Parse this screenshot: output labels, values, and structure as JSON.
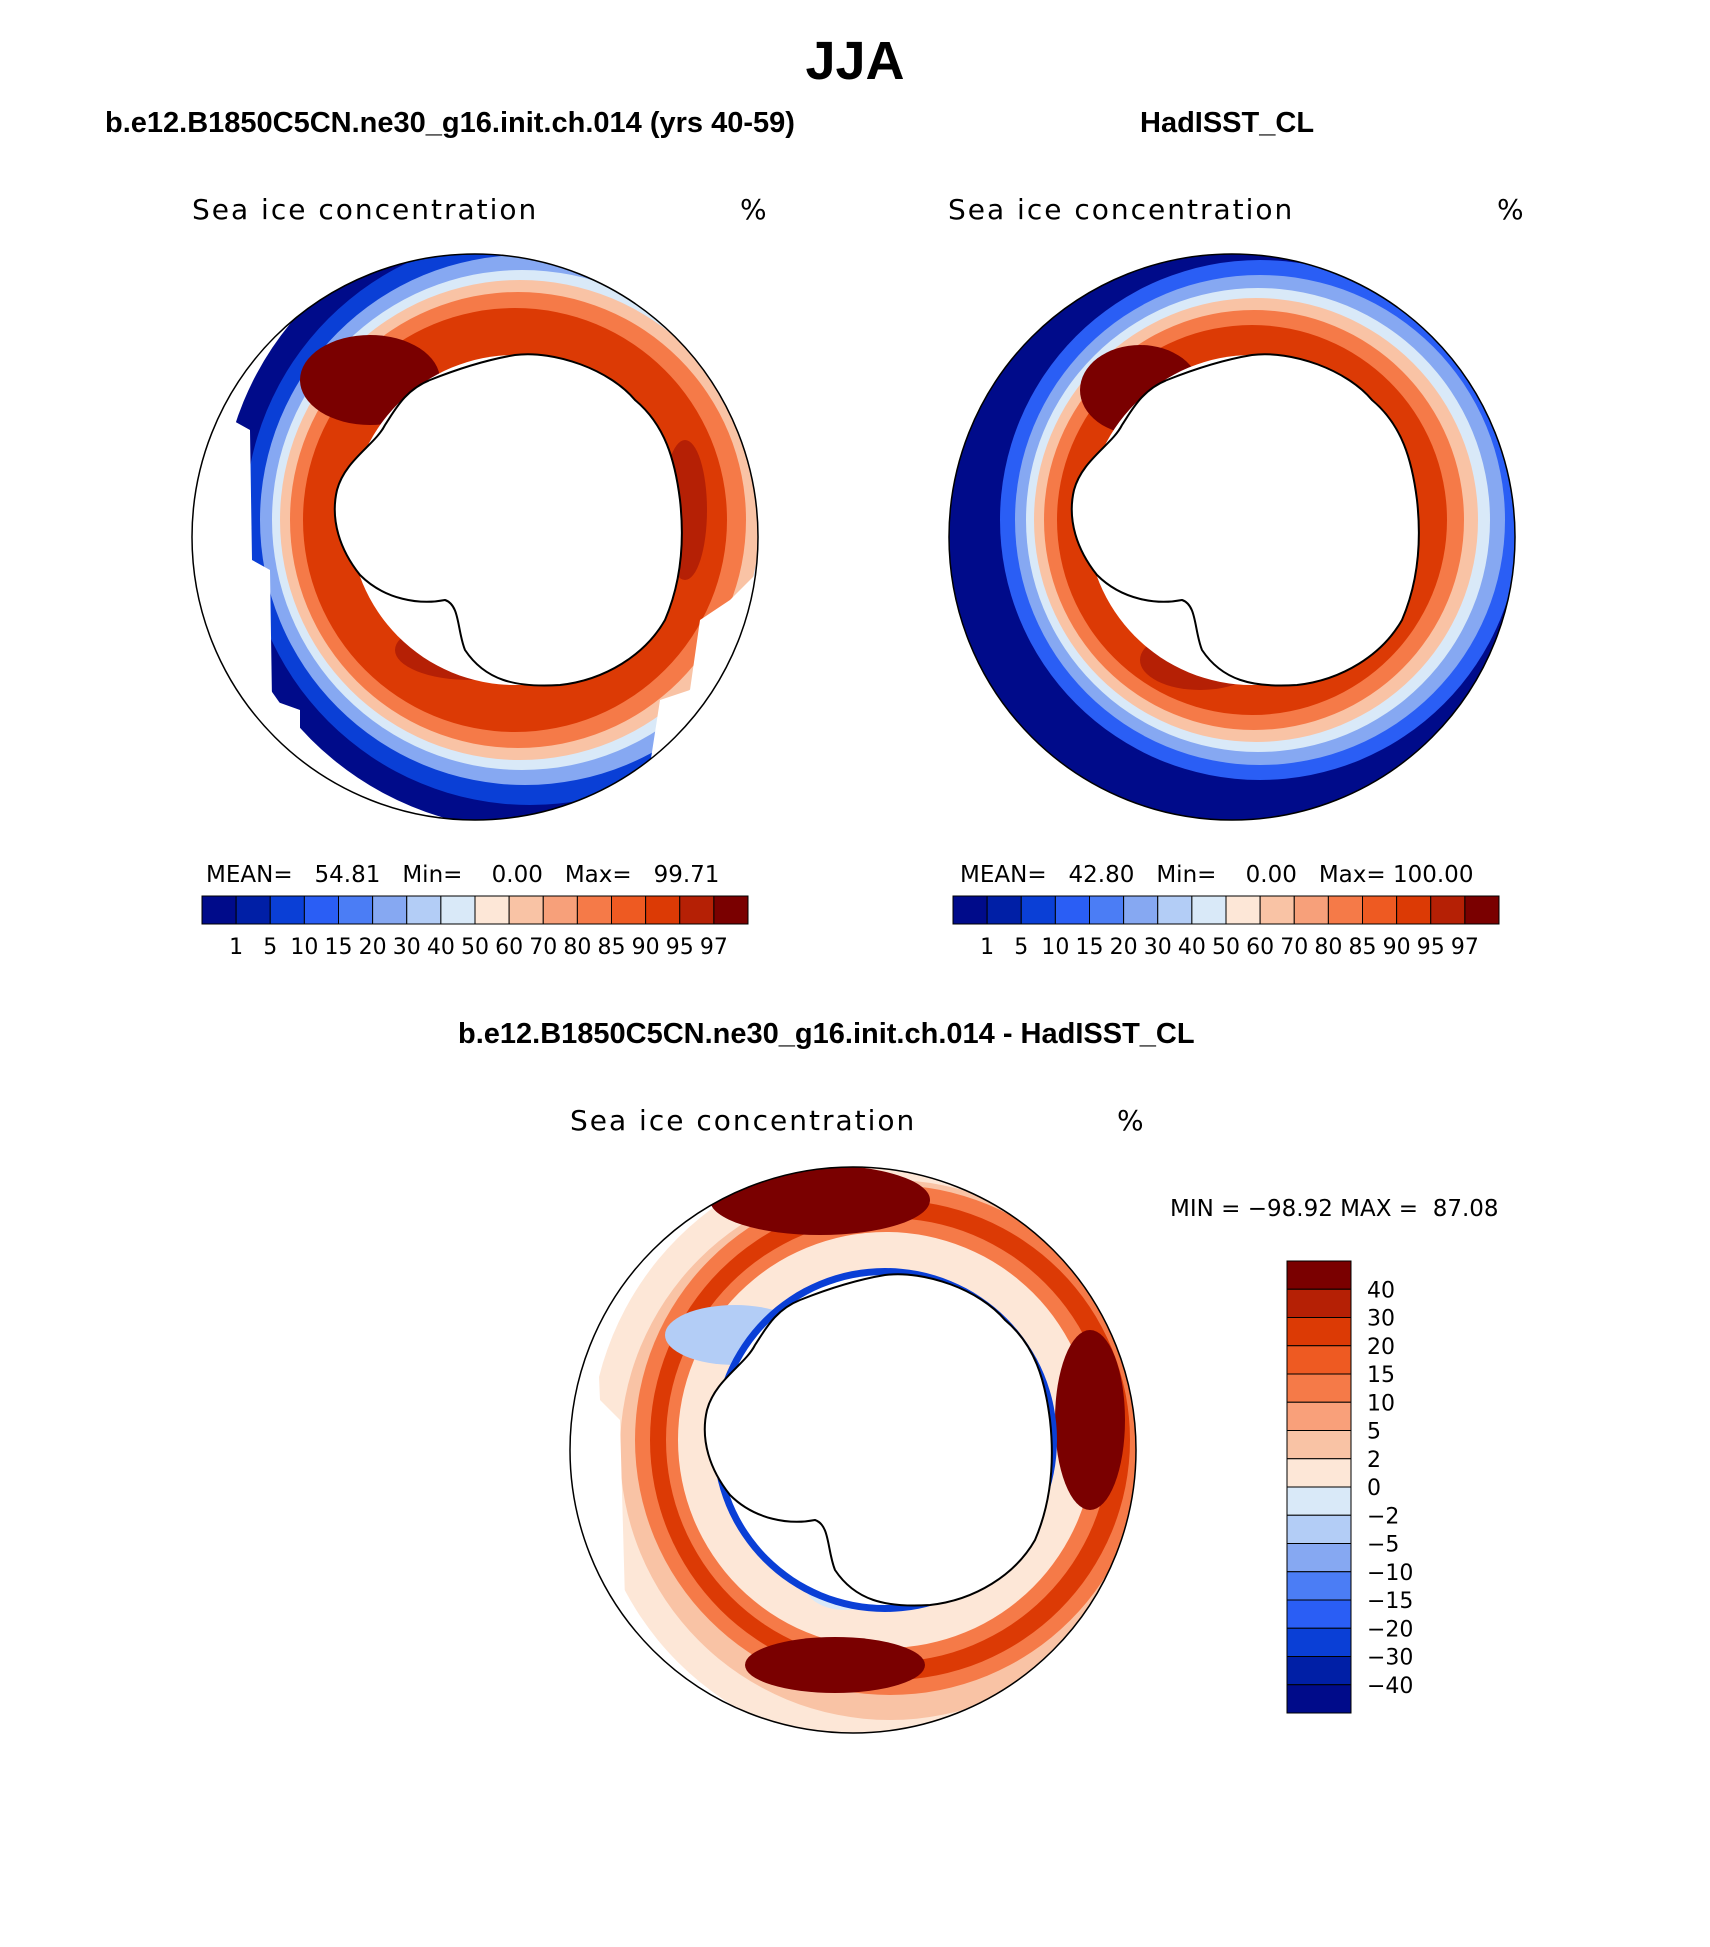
{
  "figure": {
    "title": "JJA",
    "diff_title": "b.e12.B1850C5CN.ne30_g16.init.ch.014 - HadISST_CL"
  },
  "panels": [
    {
      "case_title": "b.e12.B1850C5CN.ne30_g16.init.ch.014 (yrs 40-59)",
      "variable": "Sea ice concentration",
      "units": "%",
      "stats": {
        "mean_label": "MEAN=",
        "mean": "54.81",
        "min_label": "Min=",
        "min": "0.00",
        "max_label": "Max=",
        "max": "99.71"
      }
    },
    {
      "case_title": "HadISST_CL",
      "variable": "Sea ice concentration",
      "units": "%",
      "stats": {
        "mean_label": "MEAN=",
        "mean": "42.80",
        "min_label": "Min=",
        "min": "0.00",
        "max_label": "Max=",
        "max": "100.00"
      }
    }
  ],
  "diff_panel": {
    "variable": "Sea ice concentration",
    "units": "%",
    "minmax_text": "MIN = −98.92 MAX =  87.08"
  },
  "colorbars": {
    "concentration": {
      "labels": [
        "1",
        "5",
        "10",
        "15",
        "20",
        "30",
        "40",
        "50",
        "60",
        "70",
        "80",
        "85",
        "90",
        "95",
        "97"
      ],
      "colors": [
        "#000b8a",
        "#001fa6",
        "#0a3fd6",
        "#2a5ef5",
        "#4b7df5",
        "#86a8f2",
        "#b3cdf6",
        "#d9e9f8",
        "#fde7d7",
        "#f9c3a5",
        "#f7a07a",
        "#f57a48",
        "#ee5a22",
        "#dc3a05",
        "#b52005",
        "#7a0000"
      ]
    },
    "difference": {
      "labels": [
        "40",
        "30",
        "20",
        "15",
        "10",
        "5",
        "2",
        "0",
        "−2",
        "−5",
        "−10",
        "−15",
        "−20",
        "−30",
        "−40"
      ],
      "colors": [
        "#7a0000",
        "#b52005",
        "#dc3a05",
        "#ee5a22",
        "#f57a48",
        "#f9a07a",
        "#f9c3a5",
        "#fde7d7",
        "#d9e9f8",
        "#b3cdf6",
        "#86a8f2",
        "#4b7df5",
        "#2a5ef5",
        "#0a3fd6",
        "#001fa6",
        "#000b8a"
      ]
    }
  }
}
